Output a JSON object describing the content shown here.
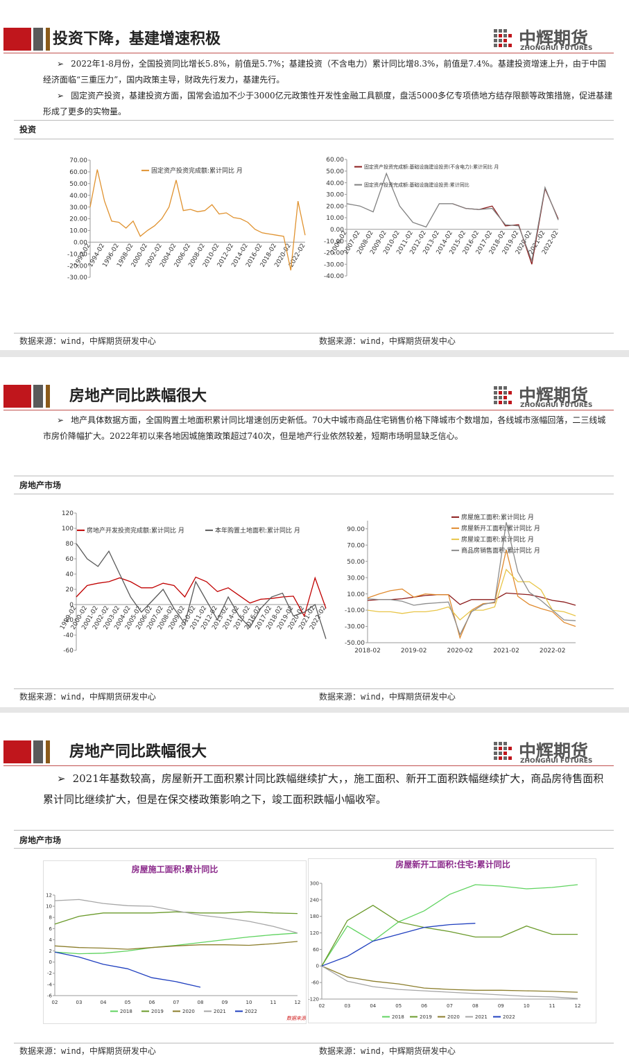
{
  "logo": {
    "name": "中辉期货",
    "en": "ZHONGHUI FUTURES"
  },
  "source": "数据来源：wind，中辉期货研发中心",
  "slides": [
    {
      "title": "投资下降，基建增速积极",
      "section": "投资",
      "bullets": [
        "2022年1-8月份，全国投资同比增长5.8%，前值是5.7%；基建投资（不含电力）累计同比增8.3%，前值是7.4%。基建投资增速上升，由于中国经济面临“三重压力”，国内政策主导，财政先行发力，基建先行。",
        "固定资产投资，基建投资方面，国常会追加不少于3000亿元政策性开发性金融工具额度，盘活5000多亿专项债地方结存限额等政策措施，促进基建形成了更多的实物量。"
      ]
    },
    {
      "title": "房地产同比跌幅很大",
      "section": "房地产市场",
      "bullets": [
        "地产具体数据方面，全国购置土地面积累计同比增速创历史新低。70大中城市商品住宅销售价格下降城市个数增加，各线城市涨幅回落，二三线城市房价降幅扩大。2022年初以来各地因城施策政策超过740次，但是地产行业依然较差，短期市场明显缺乏信心。"
      ]
    },
    {
      "title": "房地产同比跌幅很大",
      "section": "房地产市场",
      "bullets": [
        "2021年基数较高，房屋新开工面积累计同比跌幅继续扩大，，施工面积、新开工面积跌幅继续扩大，商品房待售面积累计同比继续扩大，但是在保交楼政策影响之下，竣工面积跌幅小幅收窄。"
      ]
    }
  ],
  "chart_data": [
    {
      "type": "line",
      "categories": [
        "1992-02",
        null,
        "1994-02",
        null,
        "1996-02",
        null,
        "1998-02",
        null,
        "2000-02",
        null,
        "2002-02",
        null,
        "2004-02",
        null,
        "2006-02",
        null,
        "2008-02",
        null,
        "2010-02",
        null,
        "2012-02",
        null,
        "2014-02",
        null,
        "2016-02",
        null,
        "2018-02",
        null,
        "2020-02",
        null,
        "2022-02"
      ],
      "series": [
        {
          "name": "固定资产投资完成额:累计同比 月",
          "color": "#e0922f",
          "values": [
            30,
            62,
            35,
            18,
            17,
            12,
            18,
            5,
            10,
            14,
            20,
            30,
            53,
            27,
            28,
            26,
            27,
            32,
            24,
            25,
            21,
            20,
            17,
            11,
            8,
            7,
            6,
            5,
            -24,
            35,
            6
          ]
        }
      ],
      "ylim": [
        -30,
        70
      ],
      "yticks": [
        {
          "value": -30,
          "label": "-30.00"
        },
        {
          "value": -20,
          "label": "-20.00"
        },
        {
          "value": -10,
          "label": "-10.00"
        },
        {
          "value": 0,
          "label": "0.00"
        },
        {
          "value": 10,
          "label": "10.00"
        },
        {
          "value": 20,
          "label": "20.00"
        },
        {
          "value": 30,
          "label": "30.00"
        },
        {
          "value": 40,
          "label": "40.00"
        },
        {
          "value": 50,
          "label": "50.00"
        },
        {
          "value": 60,
          "label": "60.00"
        },
        {
          "value": 70,
          "label": "70.00"
        }
      ]
    },
    {
      "type": "line",
      "categories": [
        "2006-02",
        "2007-02",
        "2008-02",
        "2009-02",
        "2010-02",
        "2011-02",
        "2012-02",
        "2013-02",
        "2014-02",
        "2015-02",
        "2016-02",
        "2017-02",
        "2018-02",
        "2019-02",
        "2020-02",
        "2021-02",
        "2022-02"
      ],
      "series": [
        {
          "name": "固定资产投资完成额:基础设施建设投资(不含电力):累计同比 月",
          "color": "#8b1a1a",
          "values": [
            null,
            null,
            null,
            null,
            null,
            null,
            null,
            null,
            22,
            18,
            17,
            20,
            3,
            4,
            -30,
            35,
            9
          ]
        },
        {
          "name": "固定资产投资完成额:基础设施建设投资:累计同比",
          "color": "#808080",
          "values": [
            22,
            20,
            15,
            48,
            20,
            6,
            2,
            22,
            22,
            18,
            17,
            18,
            4,
            3,
            -27,
            36,
            8
          ]
        }
      ],
      "ylim": [
        -40,
        60
      ],
      "yticks": [
        {
          "value": -40,
          "label": "-40.00"
        },
        {
          "value": -30,
          "label": "-30.00"
        },
        {
          "value": -20,
          "label": "-20.00"
        },
        {
          "value": -10,
          "label": "-10.00"
        },
        {
          "value": 0,
          "label": "0.00"
        },
        {
          "value": 10,
          "label": "10.00"
        },
        {
          "value": 20,
          "label": "20.00"
        },
        {
          "value": 30,
          "label": "30.00"
        },
        {
          "value": 40,
          "label": "40.00"
        },
        {
          "value": 50,
          "label": "50.00"
        },
        {
          "value": 60,
          "label": "60.00"
        }
      ]
    },
    {
      "type": "line",
      "categories": [
        "1999-02",
        "2000-02",
        "2001-02",
        "2002-02",
        "2003-02",
        "2004-02",
        "2005-02",
        "2006-02",
        "2007-02",
        "2008-02",
        "2009-02",
        "2010-02",
        "2011-02",
        "2012-02",
        "2013-02",
        "2014-02",
        "2015-02",
        "2016-02",
        "2017-02",
        "2018-02",
        "2019-02",
        "2020-02",
        "2021-02",
        "2022-02"
      ],
      "series": [
        {
          "name": "房地产开发投资完成额:累计同比 月",
          "color": "#c00000",
          "values": [
            10,
            25,
            28,
            30,
            35,
            30,
            22,
            22,
            28,
            25,
            10,
            36,
            30,
            17,
            22,
            12,
            2,
            7,
            8,
            10,
            11,
            -15,
            35,
            -5
          ]
        },
        {
          "name": "本年购置土地面积:累计同比 月",
          "color": "#595959",
          "values": [
            80,
            60,
            50,
            70,
            40,
            10,
            -10,
            5,
            20,
            -5,
            -25,
            30,
            5,
            -20,
            10,
            -15,
            -30,
            -5,
            10,
            15,
            -15,
            -10,
            0,
            -45
          ]
        }
      ],
      "ylim": [
        -60,
        120
      ],
      "yticks": [
        -60,
        -40,
        -20,
        0,
        20,
        40,
        60,
        80,
        100,
        120
      ]
    },
    {
      "type": "line",
      "categories": [
        "2018-02",
        null,
        null,
        null,
        "2019-02",
        null,
        null,
        null,
        "2020-02",
        null,
        null,
        null,
        "2021-02",
        null,
        null,
        null,
        "2022-02",
        null,
        null
      ],
      "series": [
        {
          "name": "房屋施工面积:累计同比 月",
          "color": "#8b1a1a",
          "values": [
            2,
            3,
            3,
            4,
            6,
            8,
            9,
            9,
            -3,
            3,
            3,
            3,
            11,
            10,
            9,
            6,
            2,
            0,
            -4
          ]
        },
        {
          "name": "房屋新开工面积:累计同比 月",
          "color": "#e08a2e",
          "values": [
            5,
            10,
            14,
            16,
            6,
            10,
            9,
            9,
            -44,
            -10,
            -2,
            -1,
            64,
            7,
            -3,
            -8,
            -12,
            -25,
            -30
          ]
        },
        {
          "name": "房屋竣工面积:累计同比 月",
          "color": "#e8c547",
          "values": [
            -10,
            -12,
            -12,
            -14,
            -12,
            -12,
            -10,
            -6,
            -22,
            -10,
            -10,
            -6,
            40,
            25,
            25,
            15,
            -10,
            -12,
            -17
          ]
        },
        {
          "name": "商品房销售面积:累计同比 月",
          "color": "#8c8c8c",
          "values": [
            4,
            3,
            3,
            1,
            -4,
            -2,
            -1,
            0,
            -40,
            -12,
            -3,
            0,
            98,
            37,
            12,
            2,
            -10,
            -22,
            -23
          ]
        }
      ],
      "ylim": [
        -50,
        100
      ],
      "yticks": [
        {
          "value": -50,
          "label": "-50.00"
        },
        {
          "value": -30,
          "label": "-30.00"
        },
        {
          "value": -10,
          "label": "-10.00"
        },
        {
          "value": 10,
          "label": "10.00"
        },
        {
          "value": 30,
          "label": "30.00"
        },
        {
          "value": 50,
          "label": "50.00"
        },
        {
          "value": 70,
          "label": "70.00"
        },
        {
          "value": 90,
          "label": "90.00"
        }
      ]
    },
    {
      "type": "line",
      "title": "房屋施工面积:累计同比",
      "note": "数据来源：Wind",
      "categories": [
        "02",
        "03",
        "04",
        "05",
        "06",
        "07",
        "08",
        "09",
        "10",
        "11",
        "12"
      ],
      "series": [
        {
          "name": "2018",
          "color": "#5fd35f",
          "values": [
            1.8,
            1.5,
            1.6,
            2.0,
            2.6,
            3.0,
            3.5,
            4.0,
            4.5,
            4.9,
            5.2
          ]
        },
        {
          "name": "2019",
          "color": "#6a9a2a",
          "values": [
            6.8,
            8.2,
            8.8,
            8.8,
            8.8,
            9.0,
            8.8,
            8.8,
            9.0,
            8.8,
            8.7
          ]
        },
        {
          "name": "2020",
          "color": "#8b7d2b",
          "values": [
            2.9,
            2.6,
            2.5,
            2.3,
            2.6,
            2.9,
            3.1,
            3.1,
            3.0,
            3.3,
            3.7
          ]
        },
        {
          "name": "2021",
          "color": "#a6a6a6",
          "values": [
            11.0,
            11.2,
            10.5,
            10.1,
            10.0,
            9.2,
            8.4,
            7.9,
            7.3,
            6.4,
            5.2
          ]
        },
        {
          "name": "2022",
          "color": "#1f3fbf",
          "values": [
            1.8,
            0.9,
            -0.4,
            -1.2,
            -2.8,
            -3.5,
            -4.5,
            null,
            null,
            null,
            null
          ]
        }
      ],
      "ylim": [
        -6,
        12
      ],
      "yticks": [
        -6,
        -4,
        -2,
        0,
        2,
        4,
        6,
        8,
        10,
        12
      ]
    },
    {
      "type": "line",
      "title": "房屋新开工面积:住宅:累计同比",
      "categories": [
        "02",
        "03",
        "04",
        "05",
        "06",
        "07",
        "08",
        "09",
        "10",
        "11",
        "12"
      ],
      "series": [
        {
          "name": "2018",
          "color": "#5fd35f",
          "values": [
            0,
            145,
            90,
            160,
            200,
            260,
            295,
            290,
            280,
            285,
            295
          ]
        },
        {
          "name": "2019",
          "color": "#6a9a2a",
          "values": [
            0,
            165,
            220,
            160,
            140,
            125,
            105,
            105,
            145,
            115,
            115
          ]
        },
        {
          "name": "2020",
          "color": "#8b7d2b",
          "values": [
            0,
            -40,
            -55,
            -65,
            -80,
            -85,
            -88,
            -88,
            -90,
            -92,
            -95
          ]
        },
        {
          "name": "2021",
          "color": "#a6a6a6",
          "values": [
            0,
            -55,
            -75,
            -85,
            -90,
            -95,
            -100,
            -105,
            -110,
            -112,
            -118
          ]
        },
        {
          "name": "2022",
          "color": "#1f3fbf",
          "values": [
            0,
            35,
            90,
            115,
            140,
            150,
            155,
            null,
            null,
            null,
            null
          ]
        }
      ],
      "ylim": [
        -120,
        300
      ],
      "yticks": [
        -120,
        -60,
        0,
        60,
        120,
        180,
        240,
        300
      ]
    }
  ]
}
